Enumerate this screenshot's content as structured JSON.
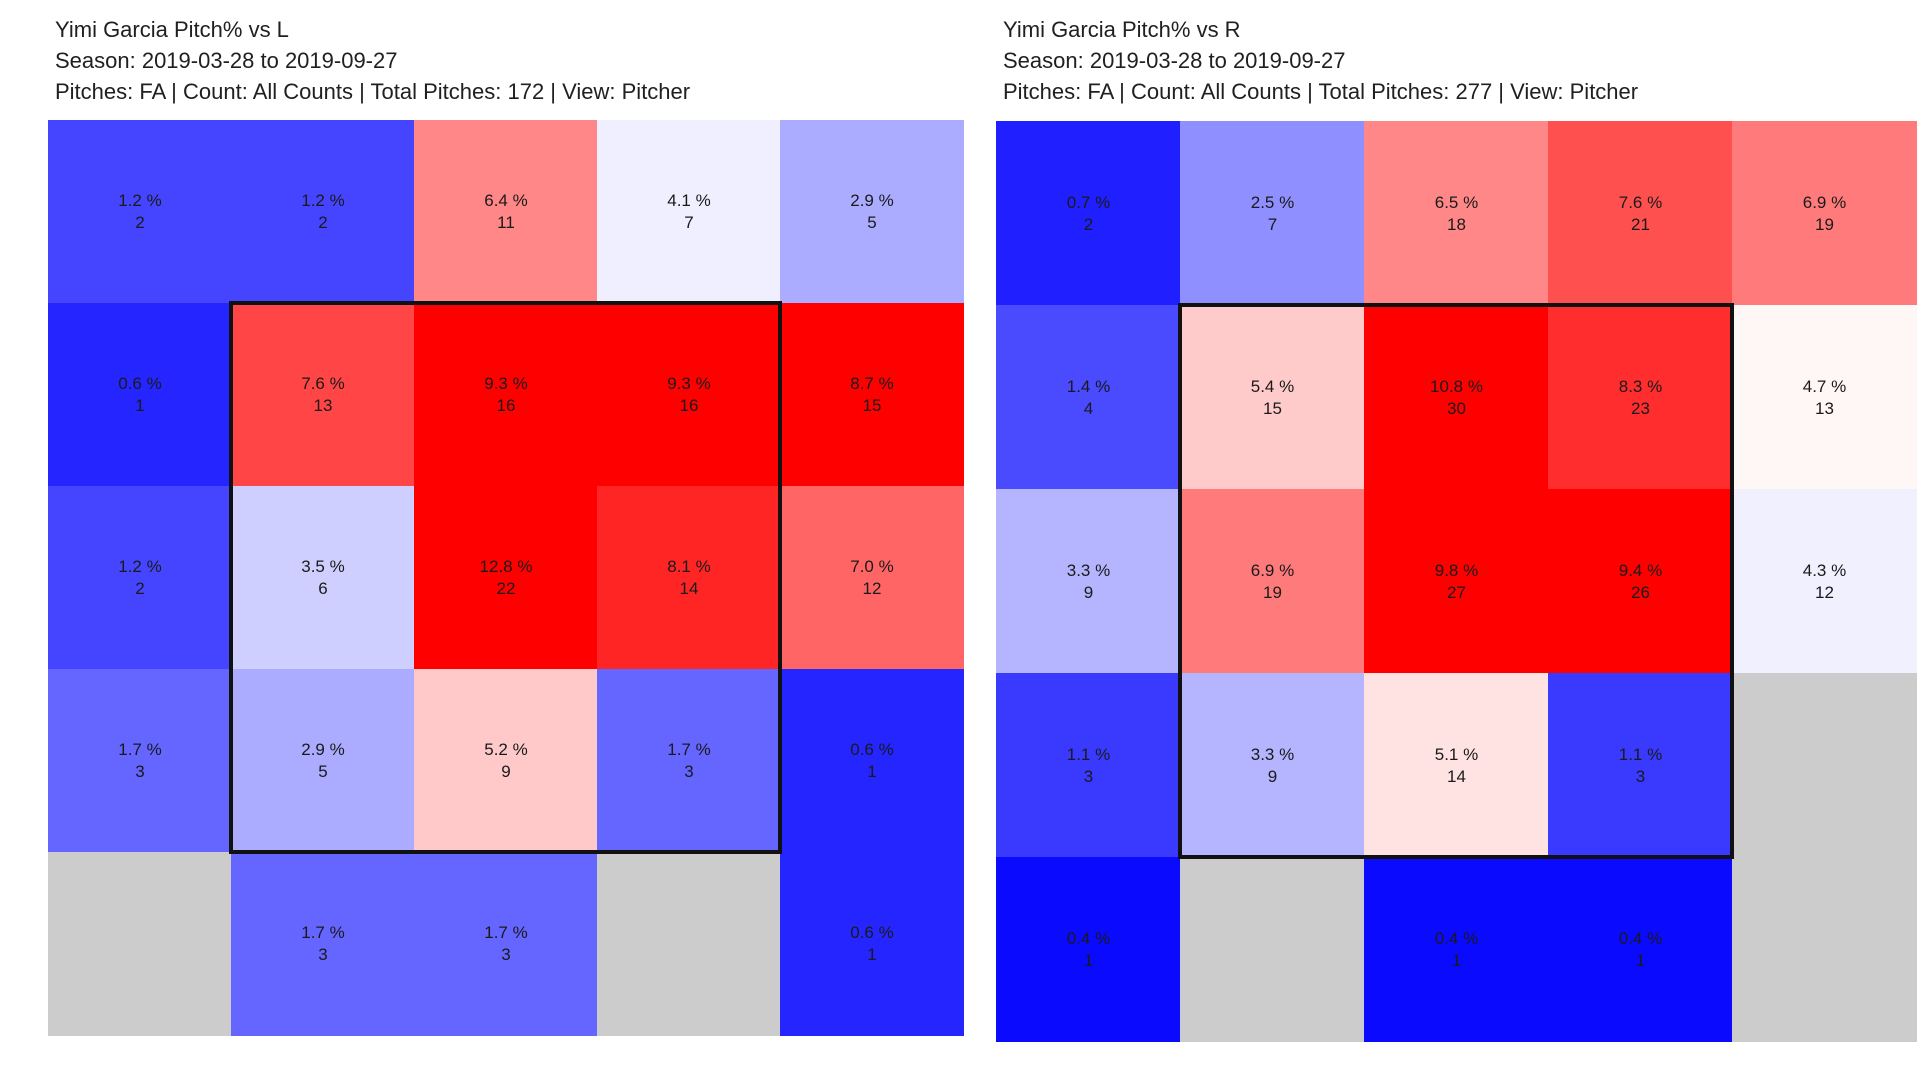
{
  "chart_data": [
    {
      "type": "heatmap",
      "title": "Yimi Garcia Pitch% vs L",
      "season": "Season: 2019-03-28 to 2019-09-27",
      "subtitle": "Pitches: FA | Count: All Counts | Total Pitches: 172 | View: Pitcher",
      "rows": 5,
      "cols": 5,
      "strike_zone": {
        "row_start": 1,
        "row_end": 3,
        "col_start": 1,
        "col_end": 3
      },
      "cells": [
        [
          {
            "pct": "1.2 %",
            "count": "2",
            "color": "#4545ff"
          },
          {
            "pct": "1.2 %",
            "count": "2",
            "color": "#4545ff"
          },
          {
            "pct": "6.4 %",
            "count": "11",
            "color": "#ff8787"
          },
          {
            "pct": "4.1 %",
            "count": "7",
            "color": "#efefff"
          },
          {
            "pct": "2.9 %",
            "count": "5",
            "color": "#ababff"
          }
        ],
        [
          {
            "pct": "0.6 %",
            "count": "1",
            "color": "#2525ff"
          },
          {
            "pct": "7.6 %",
            "count": "13",
            "color": "#ff4545"
          },
          {
            "pct": "9.3 %",
            "count": "16",
            "color": "#ff0000"
          },
          {
            "pct": "9.3 %",
            "count": "16",
            "color": "#ff0000"
          },
          {
            "pct": "8.7 %",
            "count": "15",
            "color": "#ff0000"
          }
        ],
        [
          {
            "pct": "1.2 %",
            "count": "2",
            "color": "#4545ff"
          },
          {
            "pct": "3.5 %",
            "count": "6",
            "color": "#cfcfff"
          },
          {
            "pct": "12.8 %",
            "count": "22",
            "color": "#ff0000"
          },
          {
            "pct": "8.1 %",
            "count": "14",
            "color": "#ff2525"
          },
          {
            "pct": "7.0 %",
            "count": "12",
            "color": "#ff6565"
          }
        ],
        [
          {
            "pct": "1.7 %",
            "count": "3",
            "color": "#6565ff"
          },
          {
            "pct": "2.9 %",
            "count": "5",
            "color": "#ababff"
          },
          {
            "pct": "5.2 %",
            "count": "9",
            "color": "#ffc9c9"
          },
          {
            "pct": "1.7 %",
            "count": "3",
            "color": "#6565ff"
          },
          {
            "pct": "0.6 %",
            "count": "1",
            "color": "#2525ff"
          }
        ],
        [
          {
            "pct": "",
            "count": "",
            "color": "#cccccc"
          },
          {
            "pct": "1.7 %",
            "count": "3",
            "color": "#6565ff"
          },
          {
            "pct": "1.7 %",
            "count": "3",
            "color": "#6565ff"
          },
          {
            "pct": "",
            "count": "",
            "color": "#cccccc"
          },
          {
            "pct": "0.6 %",
            "count": "1",
            "color": "#2525ff"
          }
        ]
      ]
    },
    {
      "type": "heatmap",
      "title": "Yimi Garcia Pitch% vs R",
      "season": "Season: 2019-03-28 to 2019-09-27",
      "subtitle": "Pitches: FA | Count: All Counts | Total Pitches: 277 | View: Pitcher",
      "rows": 5,
      "cols": 5,
      "strike_zone": {
        "row_start": 1,
        "row_end": 3,
        "col_start": 1,
        "col_end": 3
      },
      "cells": [
        [
          {
            "pct": "0.7 %",
            "count": "2",
            "color": "#1f1fff"
          },
          {
            "pct": "2.5 %",
            "count": "7",
            "color": "#8f8fff"
          },
          {
            "pct": "6.5 %",
            "count": "18",
            "color": "#ff8787"
          },
          {
            "pct": "7.6 %",
            "count": "21",
            "color": "#ff5050"
          },
          {
            "pct": "6.9 %",
            "count": "19",
            "color": "#ff7a7a"
          }
        ],
        [
          {
            "pct": "1.4 %",
            "count": "4",
            "color": "#4a4aff"
          },
          {
            "pct": "5.4 %",
            "count": "15",
            "color": "#ffcaca"
          },
          {
            "pct": "10.8 %",
            "count": "30",
            "color": "#ff0000"
          },
          {
            "pct": "8.3 %",
            "count": "23",
            "color": "#ff2d2d"
          },
          {
            "pct": "4.7 %",
            "count": "13",
            "color": "#fff6f6"
          }
        ],
        [
          {
            "pct": "3.3 %",
            "count": "9",
            "color": "#b5b5ff"
          },
          {
            "pct": "6.9 %",
            "count": "19",
            "color": "#ff7a7a"
          },
          {
            "pct": "9.8 %",
            "count": "27",
            "color": "#ff0000"
          },
          {
            "pct": "9.4 %",
            "count": "26",
            "color": "#ff0000"
          },
          {
            "pct": "4.3 %",
            "count": "12",
            "color": "#f0f0ff"
          }
        ],
        [
          {
            "pct": "1.1 %",
            "count": "3",
            "color": "#3a3aff"
          },
          {
            "pct": "3.3 %",
            "count": "9",
            "color": "#b5b5ff"
          },
          {
            "pct": "5.1 %",
            "count": "14",
            "color": "#ffe3e3"
          },
          {
            "pct": "1.1 %",
            "count": "3",
            "color": "#3a3aff"
          },
          {
            "pct": "",
            "count": "",
            "color": "#cccccc"
          }
        ],
        [
          {
            "pct": "0.4 %",
            "count": "1",
            "color": "#0a0aff"
          },
          {
            "pct": "",
            "count": "",
            "color": "#cccccc"
          },
          {
            "pct": "0.4 %",
            "count": "1",
            "color": "#0a0aff"
          },
          {
            "pct": "0.4 %",
            "count": "1",
            "color": "#0a0aff"
          },
          {
            "pct": "",
            "count": "",
            "color": "#cccccc"
          }
        ]
      ]
    }
  ]
}
